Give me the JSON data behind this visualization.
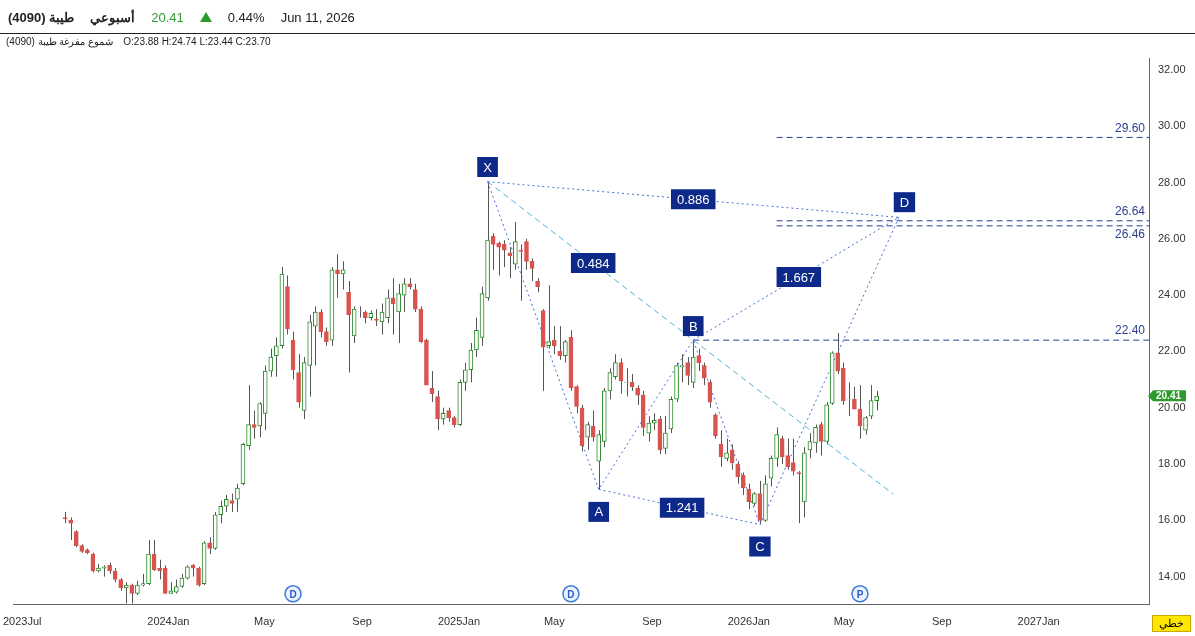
{
  "chart_data": {
    "type": "candlestick",
    "title": "طيبة (4090)",
    "subtitle": "أسبوعي",
    "x": [
      "2023-08-24",
      "2023-08-31",
      "2023-09-07",
      "2023-09-14",
      "2023-09-21",
      "2023-09-28",
      "2023-10-05",
      "2023-10-12",
      "2023-10-19",
      "2023-10-26",
      "2023-11-02",
      "2023-11-09",
      "2023-11-16",
      "2023-11-23",
      "2023-11-30",
      "2023-12-07",
      "2023-12-14",
      "2023-12-21",
      "2023-12-28",
      "2024-01-04",
      "2024-01-11",
      "2024-01-18",
      "2024-01-25",
      "2024-02-01",
      "2024-02-08",
      "2024-02-15",
      "2024-02-22",
      "2024-02-29",
      "2024-03-07",
      "2024-03-14",
      "2024-03-21",
      "2024-03-28",
      "2024-04-04",
      "2024-04-11",
      "2024-04-18",
      "2024-04-25",
      "2024-05-02",
      "2024-05-09",
      "2024-05-16",
      "2024-05-23",
      "2024-05-30",
      "2024-06-06",
      "2024-06-13",
      "2024-06-20",
      "2024-06-27",
      "2024-07-04",
      "2024-07-11",
      "2024-07-18",
      "2024-07-25",
      "2024-08-01",
      "2024-08-08",
      "2024-08-15",
      "2024-08-22",
      "2024-08-29",
      "2024-09-05",
      "2024-09-12",
      "2024-09-19",
      "2024-09-26",
      "2024-10-03",
      "2024-10-10",
      "2024-10-17",
      "2024-10-24",
      "2024-10-31",
      "2024-11-07",
      "2024-11-14",
      "2024-11-21",
      "2024-11-28",
      "2024-12-05",
      "2024-12-12",
      "2024-12-19",
      "2024-12-26",
      "2025-01-02",
      "2025-01-09",
      "2025-01-16",
      "2025-01-23",
      "2025-01-30",
      "2025-02-06",
      "2025-02-13",
      "2025-02-20",
      "2025-02-27",
      "2025-03-06",
      "2025-03-13",
      "2025-03-20",
      "2025-03-27",
      "2025-04-03",
      "2025-04-10",
      "2025-04-17",
      "2025-04-24",
      "2025-05-01",
      "2025-05-08",
      "2025-05-15",
      "2025-05-22",
      "2025-05-29",
      "2025-06-05",
      "2025-06-12",
      "2025-06-19",
      "2025-06-26",
      "2025-07-03",
      "2025-07-10",
      "2025-07-17",
      "2025-07-24",
      "2025-07-31",
      "2025-08-07",
      "2025-08-14",
      "2025-08-21",
      "2025-08-28",
      "2025-09-04",
      "2025-09-11",
      "2025-09-18",
      "2025-09-25",
      "2025-10-02",
      "2025-10-09",
      "2025-10-16",
      "2025-10-23",
      "2025-10-30",
      "2025-11-06",
      "2025-11-13",
      "2025-11-20",
      "2025-11-27",
      "2025-12-04",
      "2025-12-11",
      "2025-12-18",
      "2025-12-25",
      "2026-01-01",
      "2026-01-08",
      "2026-01-15",
      "2026-01-22",
      "2026-01-29",
      "2026-02-05",
      "2026-02-12",
      "2026-02-19",
      "2026-02-26",
      "2026-03-05",
      "2026-03-12",
      "2026-03-19",
      "2026-03-26",
      "2026-04-02",
      "2026-04-09",
      "2026-04-16",
      "2026-04-23",
      "2026-04-30",
      "2026-05-07",
      "2026-05-14",
      "2026-05-21",
      "2026-05-28",
      "2026-06-04",
      "2026-06-11"
    ],
    "ohlc": [
      [
        16.1,
        16.3,
        15.9,
        16.05
      ],
      [
        16.0,
        16.1,
        15.3,
        15.9
      ],
      [
        15.6,
        15.65,
        15.05,
        15.1
      ],
      [
        15.1,
        15.15,
        14.85,
        14.9
      ],
      [
        14.95,
        15.0,
        14.8,
        14.85
      ],
      [
        14.8,
        14.85,
        14.15,
        14.2
      ],
      [
        14.2,
        14.45,
        14.15,
        14.3
      ],
      [
        14.3,
        14.4,
        14.0,
        14.35
      ],
      [
        14.4,
        14.5,
        14.1,
        14.2
      ],
      [
        14.2,
        14.3,
        13.8,
        13.9
      ],
      [
        13.9,
        13.95,
        13.5,
        13.6
      ],
      [
        13.6,
        13.8,
        13.05,
        13.7
      ],
      [
        13.7,
        13.75,
        13.05,
        13.4
      ],
      [
        13.4,
        13.85,
        13.35,
        13.7
      ],
      [
        13.7,
        14.1,
        13.65,
        13.75
      ],
      [
        13.75,
        15.3,
        13.7,
        14.8
      ],
      [
        14.8,
        15.3,
        14.2,
        14.25
      ],
      [
        14.3,
        14.6,
        13.9,
        14.2
      ],
      [
        14.3,
        14.4,
        13.4,
        13.4
      ],
      [
        13.4,
        13.8,
        13.4,
        13.5
      ],
      [
        13.45,
        13.9,
        13.4,
        13.65
      ],
      [
        13.65,
        14.1,
        13.6,
        13.95
      ],
      [
        13.95,
        14.4,
        13.9,
        14.35
      ],
      [
        14.4,
        14.45,
        14.0,
        14.3
      ],
      [
        14.3,
        14.35,
        13.65,
        13.7
      ],
      [
        13.75,
        15.25,
        13.7,
        15.2
      ],
      [
        15.2,
        15.4,
        14.8,
        15.0
      ],
      [
        15.0,
        16.3,
        14.95,
        16.2
      ],
      [
        16.2,
        16.7,
        15.9,
        16.5
      ],
      [
        16.5,
        16.9,
        16.3,
        16.75
      ],
      [
        16.7,
        16.95,
        16.3,
        16.6
      ],
      [
        16.75,
        17.3,
        16.3,
        17.15
      ],
      [
        17.3,
        18.75,
        17.25,
        18.7
      ],
      [
        18.65,
        20.8,
        18.5,
        19.4
      ],
      [
        19.4,
        19.9,
        18.9,
        19.3
      ],
      [
        19.35,
        20.2,
        18.95,
        20.15
      ],
      [
        19.8,
        21.5,
        19.2,
        21.3
      ],
      [
        21.3,
        22.1,
        21.1,
        21.8
      ],
      [
        21.85,
        22.5,
        21.1,
        22.2
      ],
      [
        22.2,
        25.0,
        22.1,
        24.75
      ],
      [
        24.3,
        24.7,
        22.6,
        22.8
      ],
      [
        22.4,
        22.7,
        21.0,
        21.35
      ],
      [
        21.25,
        21.9,
        20.0,
        20.2
      ],
      [
        19.9,
        21.8,
        19.6,
        21.6
      ],
      [
        21.5,
        23.3,
        20.4,
        23.05
      ],
      [
        22.9,
        23.6,
        21.5,
        23.4
      ],
      [
        23.4,
        23.5,
        22.5,
        22.7
      ],
      [
        22.7,
        22.85,
        22.2,
        22.35
      ],
      [
        22.4,
        25.0,
        22.2,
        24.9
      ],
      [
        24.9,
        25.45,
        23.9,
        24.75
      ],
      [
        24.75,
        25.2,
        24.2,
        24.9
      ],
      [
        24.1,
        24.5,
        21.25,
        23.3
      ],
      [
        22.55,
        23.6,
        22.3,
        23.5
      ],
      [
        23.4,
        23.6,
        23.2,
        23.4
      ],
      [
        23.4,
        23.45,
        23.0,
        23.2
      ],
      [
        23.2,
        23.45,
        23.1,
        23.35
      ],
      [
        23.15,
        23.5,
        22.9,
        23.1
      ],
      [
        23.05,
        23.7,
        22.6,
        23.4
      ],
      [
        23.2,
        24.2,
        23.0,
        23.9
      ],
      [
        23.9,
        24.6,
        22.6,
        23.7
      ],
      [
        23.4,
        24.4,
        22.3,
        24.05
      ],
      [
        24.0,
        24.6,
        23.4,
        24.4
      ],
      [
        24.4,
        24.6,
        24.2,
        24.3
      ],
      [
        24.2,
        24.4,
        23.4,
        23.5
      ],
      [
        23.5,
        23.6,
        22.3,
        22.35
      ],
      [
        22.4,
        22.45,
        20.8,
        20.8
      ],
      [
        20.7,
        21.3,
        20.2,
        20.5
      ],
      [
        20.4,
        20.6,
        19.2,
        19.6
      ],
      [
        19.6,
        20.0,
        19.4,
        19.8
      ],
      [
        19.9,
        20.0,
        19.5,
        19.65
      ],
      [
        19.65,
        19.7,
        19.3,
        19.4
      ],
      [
        19.4,
        21.0,
        19.35,
        20.9
      ],
      [
        20.9,
        21.6,
        20.6,
        21.35
      ],
      [
        21.35,
        22.3,
        20.9,
        22.05
      ],
      [
        22.05,
        23.2,
        21.8,
        22.75
      ],
      [
        22.5,
        24.3,
        22.2,
        24.05
      ],
      [
        23.9,
        28.03,
        23.8,
        25.95
      ],
      [
        26.1,
        26.2,
        24.9,
        25.8
      ],
      [
        25.85,
        25.9,
        24.7,
        25.7
      ],
      [
        25.8,
        25.95,
        25.0,
        25.6
      ],
      [
        25.5,
        25.7,
        24.6,
        25.4
      ],
      [
        25.1,
        26.6,
        24.9,
        25.9
      ],
      [
        25.6,
        25.8,
        23.8,
        25.55
      ],
      [
        25.9,
        26.0,
        24.9,
        25.2
      ],
      [
        25.2,
        25.3,
        24.5,
        24.95
      ],
      [
        24.5,
        24.6,
        24.1,
        24.3
      ],
      [
        23.45,
        23.5,
        20.6,
        22.15
      ],
      [
        22.2,
        24.35,
        22.1,
        22.35
      ],
      [
        22.4,
        22.9,
        21.9,
        22.2
      ],
      [
        22.0,
        22.9,
        21.7,
        21.85
      ],
      [
        21.85,
        22.4,
        21.6,
        22.35
      ],
      [
        22.5,
        22.75,
        20.6,
        20.7
      ],
      [
        20.75,
        20.8,
        19.8,
        20.05
      ],
      [
        20.0,
        20.1,
        18.45,
        18.65
      ],
      [
        18.95,
        19.5,
        18.5,
        19.4
      ],
      [
        19.35,
        19.9,
        18.8,
        18.95
      ],
      [
        18.1,
        19.2,
        17.1,
        19.05
      ],
      [
        18.8,
        20.7,
        18.6,
        20.6
      ],
      [
        20.6,
        21.4,
        20.3,
        21.25
      ],
      [
        21.1,
        21.9,
        21.0,
        21.6
      ],
      [
        21.6,
        21.75,
        20.5,
        20.95
      ],
      [
        20.9,
        21.4,
        20.4,
        20.9
      ],
      [
        20.9,
        21.2,
        20.6,
        20.75
      ],
      [
        20.7,
        20.8,
        20.1,
        20.45
      ],
      [
        20.45,
        20.6,
        19.0,
        19.3
      ],
      [
        19.1,
        19.7,
        18.8,
        19.45
      ],
      [
        19.45,
        19.8,
        19.2,
        19.55
      ],
      [
        19.6,
        19.7,
        18.35,
        18.5
      ],
      [
        18.55,
        19.7,
        18.35,
        19.1
      ],
      [
        19.25,
        20.4,
        19.1,
        20.3
      ],
      [
        20.3,
        21.6,
        20.2,
        21.5
      ],
      [
        21.45,
        21.9,
        20.9,
        21.5
      ],
      [
        21.6,
        21.8,
        20.8,
        21.15
      ],
      [
        20.9,
        22.4,
        20.7,
        21.8
      ],
      [
        21.85,
        22.1,
        21.3,
        21.6
      ],
      [
        21.5,
        21.6,
        20.8,
        21.05
      ],
      [
        20.9,
        21.0,
        20.0,
        20.2
      ],
      [
        19.75,
        19.8,
        18.9,
        19.0
      ],
      [
        18.7,
        19.2,
        17.9,
        18.25
      ],
      [
        18.2,
        18.9,
        18.1,
        18.4
      ],
      [
        18.5,
        18.7,
        17.8,
        18.05
      ],
      [
        18.0,
        18.1,
        17.3,
        17.55
      ],
      [
        17.6,
        17.7,
        16.9,
        17.15
      ],
      [
        17.1,
        17.3,
        16.4,
        16.65
      ],
      [
        16.6,
        17.0,
        16.5,
        16.95
      ],
      [
        16.95,
        17.4,
        15.85,
        16.0
      ],
      [
        16.0,
        17.6,
        15.95,
        17.3
      ],
      [
        17.5,
        18.3,
        17.2,
        18.2
      ],
      [
        18.2,
        19.3,
        17.9,
        19.05
      ],
      [
        18.9,
        19.0,
        18.0,
        18.25
      ],
      [
        18.3,
        18.9,
        17.8,
        17.9
      ],
      [
        18.05,
        18.9,
        17.6,
        17.75
      ],
      [
        17.7,
        17.75,
        15.9,
        17.65
      ],
      [
        16.65,
        18.6,
        16.1,
        18.4
      ],
      [
        18.5,
        19.1,
        18.2,
        18.8
      ],
      [
        18.75,
        19.4,
        18.4,
        19.3
      ],
      [
        19.4,
        19.5,
        18.3,
        18.8
      ],
      [
        18.8,
        20.2,
        18.7,
        20.1
      ],
      [
        20.15,
        22.0,
        20.1,
        21.95
      ],
      [
        21.95,
        22.65,
        21.2,
        21.3
      ],
      [
        21.4,
        21.6,
        20.1,
        20.25
      ],
      [
        20.3,
        20.9,
        19.7,
        20.3
      ],
      [
        20.3,
        20.75,
        19.95,
        19.95
      ],
      [
        19.95,
        20.8,
        18.9,
        19.35
      ],
      [
        19.2,
        19.7,
        19.05,
        19.65
      ],
      [
        19.7,
        20.8,
        19.6,
        20.25
      ],
      [
        20.25,
        20.6,
        19.9,
        20.41
      ]
    ],
    "series": [
      {
        "type": "line",
        "color": "#4a6fd8",
        "line_style": "dotted",
        "x": [
          "2025-02-06",
          "2025-06-26",
          "2025-10-23",
          "2026-01-15",
          "2026-07-09"
        ],
        "values": [
          28.03,
          17.1,
          22.4,
          15.85,
          26.76
        ]
      },
      {
        "type": "line",
        "color": "#4a6fd8",
        "line_style": "dotted",
        "x": [
          "2025-02-06",
          "2026-07-09"
        ],
        "values": [
          28.03,
          26.76
        ]
      },
      {
        "type": "line",
        "color": "#4a6fd8",
        "line_style": "dotted",
        "x": [
          "2025-06-26",
          "2026-01-15"
        ],
        "values": [
          17.1,
          15.85
        ]
      },
      {
        "type": "line",
        "color": "#4a6fd8",
        "line_style": "dotted",
        "x": [
          "2025-10-23",
          "2026-07-09"
        ],
        "values": [
          22.4,
          26.76
        ]
      },
      {
        "type": "line",
        "color": "#4fb3d9",
        "line_style": "dashed",
        "x": [
          "2025-02-06",
          "2026-07-02"
        ],
        "values": [
          28.03,
          16.93
        ]
      },
      {
        "type": "line",
        "name": "29.60",
        "color": "#2a3f8f",
        "line_style": "dashed",
        "x": [
          "2026-02-05",
          "2027-05-20"
        ],
        "values": [
          29.6,
          29.6
        ]
      },
      {
        "type": "line",
        "name": "26.64",
        "color": "#2a3f8f",
        "line_style": "dashed",
        "x": [
          "2026-02-05",
          "2027-05-20"
        ],
        "values": [
          26.64,
          26.64
        ]
      },
      {
        "type": "line",
        "name": "26.46",
        "color": "#2a3f8f",
        "line_style": "dashed",
        "x": [
          "2026-02-05",
          "2027-05-20"
        ],
        "values": [
          26.46,
          26.46
        ]
      },
      {
        "type": "line",
        "name": "22.40",
        "color": "#2a3f8f",
        "line_style": "dashed",
        "x": [
          "2025-10-23",
          "2027-05-20"
        ],
        "values": [
          22.4,
          22.4
        ]
      }
    ],
    "marker": "none",
    "legend": false,
    "xlim": [
      "2023-06-20",
      "2027-05-20"
    ],
    "xticks": [
      {
        "value": "2023-07",
        "label": "2023Jul"
      },
      {
        "value": "2024-01",
        "label": "2024Jan"
      },
      {
        "value": "2024-05",
        "label": "May"
      },
      {
        "value": "2024-09",
        "label": "Sep"
      },
      {
        "value": "2025-01",
        "label": "2025Jan"
      },
      {
        "value": "2025-05",
        "label": "May"
      },
      {
        "value": "2025-09",
        "label": "Sep"
      },
      {
        "value": "2026-01",
        "label": "2026Jan"
      },
      {
        "value": "2026-05",
        "label": "May"
      },
      {
        "value": "2026-09",
        "label": "Sep"
      },
      {
        "value": "2027-01",
        "label": "2027Jan"
      }
    ],
    "ylim": [
      13.0,
      32.4
    ],
    "yticks": [
      {
        "value": 14,
        "label": "14.00"
      },
      {
        "value": 16,
        "label": "16.00"
      },
      {
        "value": 18,
        "label": "18.00"
      },
      {
        "value": 20,
        "label": "20.00"
      },
      {
        "value": 22,
        "label": "22.00"
      },
      {
        "value": 24,
        "label": "24.00"
      },
      {
        "value": 26,
        "label": "26.00"
      },
      {
        "value": 28,
        "label": "28.00"
      },
      {
        "value": 30,
        "label": "30.00"
      },
      {
        "value": 32,
        "label": "32.00"
      }
    ],
    "annotations": [
      "20.41",
      "0.44%",
      "Jun 11, 2026",
      "شموع مفرغة طيبة (4090)",
      "O:23.88 H:24.74 L:23.44 C:23.70",
      "خطي",
      {
        "text": "X",
        "x": "2025-02-06",
        "y": 28.55
      },
      {
        "text": "A",
        "x": "2025-06-26",
        "y": 16.3
      },
      {
        "text": "B",
        "x": "2025-10-23",
        "y": 22.9
      },
      {
        "text": "C",
        "x": "2026-01-15",
        "y": 15.07
      },
      {
        "text": "D",
        "x": "2026-07-16",
        "y": 27.3
      },
      {
        "text": "0.886",
        "x": "2025-10-23",
        "y": 27.4
      },
      {
        "text": "0.484",
        "x": "2025-06-19",
        "y": 25.14
      },
      {
        "text": "1.667",
        "x": "2026-03-05",
        "y": 24.64
      },
      {
        "text": "1.241",
        "x": "2025-10-09",
        "y": 16.45
      },
      "20.41",
      {
        "text": "D",
        "x": "2024-06-06"
      },
      {
        "text": "D",
        "x": "2025-05-22"
      },
      {
        "text": "P",
        "x": "2026-05-21"
      }
    ]
  }
}
